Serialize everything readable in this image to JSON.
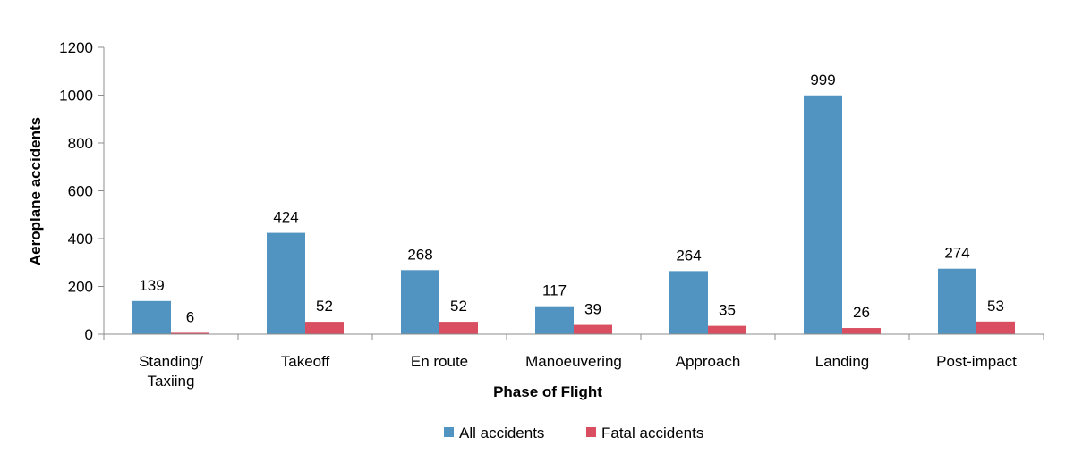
{
  "chart_data": {
    "type": "bar",
    "title": "",
    "xlabel": "Phase of Flight",
    "ylabel": "Aeroplane accidents",
    "ylim": [
      0,
      1200
    ],
    "yticks": [
      0,
      200,
      400,
      600,
      800,
      1000,
      1200
    ],
    "grid": false,
    "legend_position": "bottom",
    "categories": [
      [
        "Standing/",
        "Taxiing"
      ],
      [
        "Takeoff"
      ],
      [
        "En route"
      ],
      [
        "Manoeuvering"
      ],
      [
        "Approach"
      ],
      [
        "Landing"
      ],
      [
        "Post-impact"
      ]
    ],
    "series": [
      {
        "name": "All accidents",
        "color": "#5193c1",
        "values": [
          139,
          424,
          268,
          117,
          264,
          999,
          274
        ]
      },
      {
        "name": "Fatal accidents",
        "color": "#d94f61",
        "values": [
          6,
          52,
          52,
          39,
          35,
          26,
          53
        ]
      }
    ]
  }
}
